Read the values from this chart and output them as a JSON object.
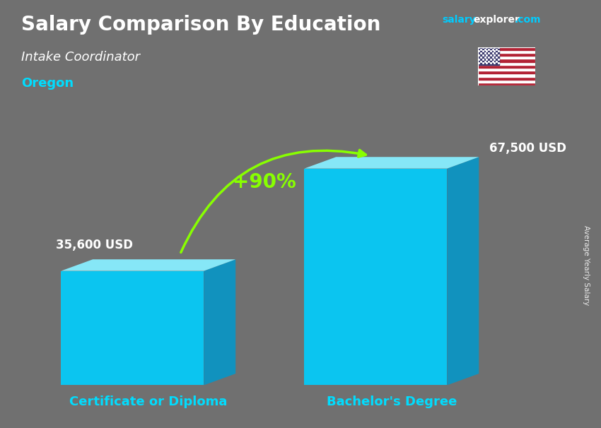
{
  "title": "Salary Comparison By Education",
  "subtitle": "Intake Coordinator",
  "location": "Oregon",
  "categories": [
    "Certificate or Diploma",
    "Bachelor's Degree"
  ],
  "values": [
    35600,
    67500
  ],
  "labels": [
    "35,600 USD",
    "67,500 USD"
  ],
  "pct_change": "+90%",
  "bar_face_color": "#00CFFF",
  "bar_top_color": "#88EEFF",
  "bar_side_color": "#0099CC",
  "background_color": "#707070",
  "location_color": "#00DDFF",
  "cat_label_color": "#00DDFF",
  "pct_color": "#88FF00",
  "arrow_color": "#88FF00",
  "ylabel_text": "Average Yearly Salary",
  "max_val": 80000
}
